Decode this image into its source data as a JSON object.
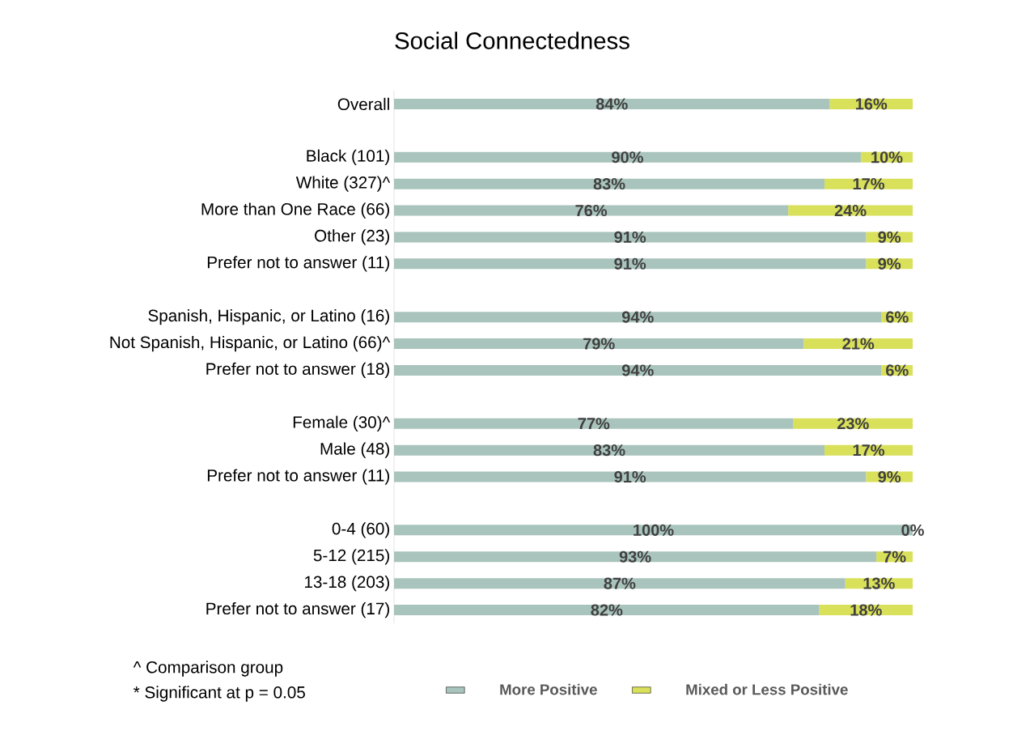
{
  "chart_data": {
    "type": "bar",
    "orientation": "horizontal",
    "stacked": true,
    "title": "Social Connectedness",
    "categories": [
      "Overall",
      null,
      "Black (101)",
      "White (327)^",
      "More than One Race (66)",
      "Other (23)",
      "Prefer not to answer (11)",
      null,
      "Spanish, Hispanic, or Latino (16)",
      "Not Spanish, Hispanic, or Latino (66)^",
      "Prefer not to answer (18)",
      null,
      "Female (30)^",
      "Male (48)",
      "Prefer not to answer (11)",
      null,
      "0-4 (60)",
      "5-12 (215)",
      "13-18 (203)",
      "Prefer not to answer (17)"
    ],
    "series": [
      {
        "name": "More Positive",
        "color": "#a9c4bc",
        "values": [
          84,
          null,
          90,
          83,
          76,
          91,
          91,
          null,
          94,
          79,
          94,
          null,
          77,
          83,
          91,
          null,
          100,
          93,
          87,
          82
        ],
        "value_labels": [
          "84%",
          null,
          "90%",
          "83%",
          "76%",
          "91%",
          "91%",
          null,
          "94%",
          "79%",
          "94%",
          null,
          "77%",
          "83%",
          "91%",
          null,
          "100%",
          "93%",
          "87%",
          "82%"
        ]
      },
      {
        "name": "Mixed or Less Positive",
        "color": "#d9e05a",
        "values": [
          16,
          null,
          10,
          17,
          24,
          9,
          9,
          null,
          6,
          21,
          6,
          null,
          23,
          17,
          9,
          null,
          0,
          7,
          13,
          18
        ],
        "value_labels": [
          "16%",
          null,
          "10%",
          "17%",
          "24%",
          "9%",
          "9%",
          null,
          "6%",
          "21%",
          "6%",
          null,
          "23%",
          "17%",
          "9%",
          null,
          "0%",
          "7%",
          "13%",
          "18%"
        ]
      }
    ],
    "xlim": [
      0,
      100
    ],
    "tick_labels": "y",
    "legend": "bottom",
    "grid": false,
    "annotations": [
      "^ Comparison group",
      "* Significant at p = 0.05"
    ]
  }
}
